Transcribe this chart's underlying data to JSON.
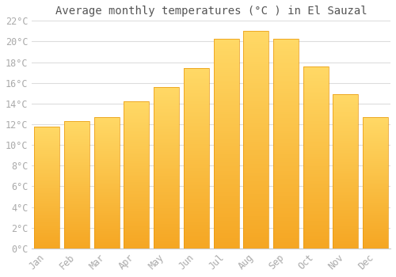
{
  "title": "Average monthly temperatures (°C ) in El Sauzal",
  "months": [
    "Jan",
    "Feb",
    "Mar",
    "Apr",
    "May",
    "Jun",
    "Jul",
    "Aug",
    "Sep",
    "Oct",
    "Nov",
    "Dec"
  ],
  "temperatures": [
    11.8,
    12.3,
    12.7,
    14.2,
    15.6,
    17.4,
    20.3,
    21.0,
    20.3,
    17.6,
    14.9,
    12.7
  ],
  "bar_color_bottom": "#F5A623",
  "bar_color_top": "#FFD966",
  "bar_edge_color": "#E8960A",
  "ylim": [
    0,
    22
  ],
  "ytick_step": 2,
  "background_color": "#ffffff",
  "grid_color": "#dddddd",
  "title_fontsize": 10,
  "tick_fontsize": 8.5,
  "font_family": "monospace",
  "tick_color": "#aaaaaa",
  "bar_width": 0.85
}
